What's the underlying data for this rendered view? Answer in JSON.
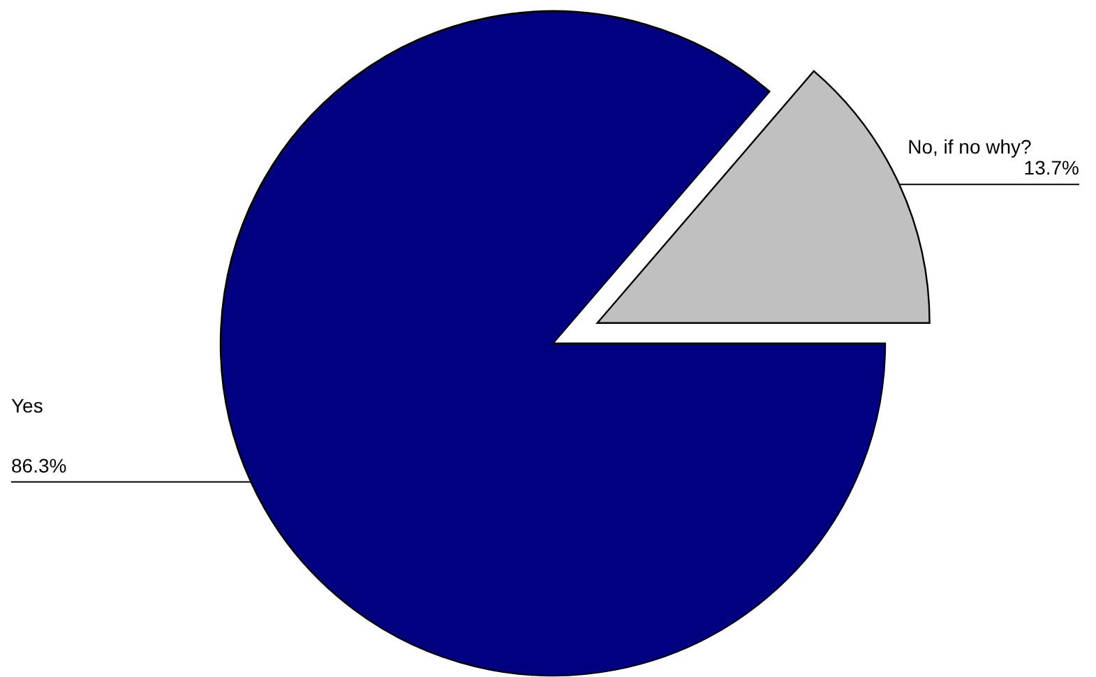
{
  "chart_data": {
    "type": "pie",
    "categories": [
      "Yes",
      "No, if no why?"
    ],
    "values": [
      86.3,
      13.7
    ],
    "colors": [
      "#000080",
      "#c0c0c0"
    ],
    "value_labels": [
      "86.3%",
      "13.7%"
    ],
    "legend": false
  }
}
